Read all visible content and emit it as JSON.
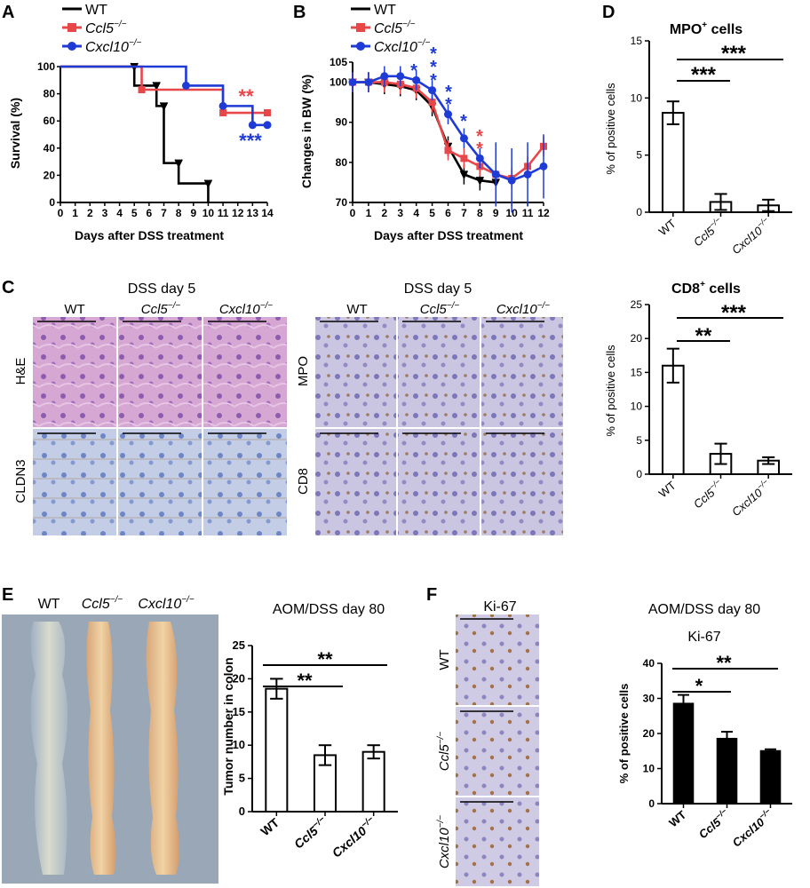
{
  "panel_labels": {
    "A": "A",
    "B": "B",
    "C": "C",
    "D": "D",
    "E": "E",
    "F": "F"
  },
  "legend": {
    "wt": "WT",
    "ccl5": "Ccl5",
    "cxcl10": "Cxcl10",
    "ko_sup": "−/−"
  },
  "colors": {
    "wt": "#000000",
    "ccl5": "#e8474a",
    "cxcl10": "#1f3bd6",
    "panel_bg_he": "#c98fc7",
    "panel_bg_ihc": "#b7b3d6",
    "panel_bg_cldn": "#a9b8d8"
  },
  "panelC": {
    "dss_day5_left": "DSS day 5",
    "dss_day5_right": "DSS day 5",
    "row_he": "H&E",
    "row_cldn3": "CLDN3",
    "row_mpo": "MPO",
    "row_cd8": "CD8",
    "col_wt": "WT"
  },
  "panelE": {
    "col_wt": "WT",
    "subtitle": "AOM/DSS day 80"
  },
  "panelF": {
    "ki67_header": "Ki-67",
    "row_wt": "WT",
    "subtitle": "AOM/DSS day 80"
  },
  "stars": {
    "A_ccl5": "**",
    "A_cxcl10": "***",
    "B_blue": "*",
    "B_red": "*",
    "D1_a": "***",
    "D1_b": "***",
    "D2_a": "**",
    "D2_b": "***",
    "E_a": "**",
    "E_b": "**",
    "F_a": "*",
    "F_b": "**"
  },
  "chart_data": [
    {
      "id": "A",
      "type": "line",
      "ylabel": "Survival (%)",
      "xlabel": "Days after DSS treatment",
      "xlim": [
        0,
        14
      ],
      "ylim": [
        0,
        100
      ],
      "xticks": [
        0,
        1,
        2,
        3,
        4,
        5,
        6,
        7,
        8,
        9,
        10,
        11,
        12,
        13,
        14
      ],
      "yticks": [
        0,
        20,
        40,
        60,
        80,
        100
      ],
      "series": [
        {
          "name": "WT",
          "step": [
            [
              0,
              100
            ],
            [
              5,
              100
            ],
            [
              5,
              86
            ],
            [
              6.5,
              86
            ],
            [
              6.5,
              71
            ],
            [
              7,
              71
            ],
            [
              7,
              29
            ],
            [
              8,
              29
            ],
            [
              8,
              14
            ],
            [
              10,
              14
            ],
            [
              10,
              0
            ]
          ]
        },
        {
          "name": "Ccl5",
          "step": [
            [
              0,
              100
            ],
            [
              5.5,
              100
            ],
            [
              5.5,
              83
            ],
            [
              11,
              83
            ],
            [
              11,
              66
            ],
            [
              14,
              66
            ]
          ]
        },
        {
          "name": "Cxcl10",
          "step": [
            [
              0,
              100
            ],
            [
              8.5,
              100
            ],
            [
              8.5,
              86
            ],
            [
              11,
              86
            ],
            [
              11,
              71
            ],
            [
              13,
              71
            ],
            [
              13,
              57
            ],
            [
              14,
              57
            ]
          ]
        }
      ]
    },
    {
      "id": "B",
      "type": "line",
      "ylabel": "Changes in BW (%)",
      "xlabel": "Days after DSS treatment",
      "xlim": [
        0,
        12
      ],
      "ylim": [
        70,
        105
      ],
      "xticks": [
        0,
        1,
        2,
        3,
        4,
        5,
        6,
        7,
        8,
        9,
        10,
        11,
        12
      ],
      "yticks": [
        70,
        80,
        90,
        100,
        105
      ],
      "series": [
        {
          "name": "WT",
          "x": [
            0,
            1,
            2,
            3,
            4,
            5,
            6,
            7,
            8,
            9
          ],
          "y": [
            100,
            100,
            99.5,
            99,
            98,
            94,
            84,
            77,
            75.5,
            75
          ]
        },
        {
          "name": "Ccl5",
          "x": [
            0,
            1,
            2,
            3,
            4,
            5,
            6,
            7,
            8,
            9,
            10,
            11,
            12
          ],
          "y": [
            100,
            100,
            100,
            99.5,
            98.5,
            95,
            83,
            81,
            79,
            77,
            76,
            79,
            84
          ]
        },
        {
          "name": "Cxcl10",
          "x": [
            0,
            1,
            2,
            3,
            4,
            5,
            6,
            7,
            8,
            9,
            10,
            11,
            12
          ],
          "y": [
            100,
            100,
            101.5,
            101.5,
            100.5,
            98,
            92,
            86,
            81,
            77,
            75.5,
            77,
            79
          ]
        }
      ]
    },
    {
      "id": "D1",
      "type": "bar",
      "title": "MPO",
      "title_sup": "+",
      "title_suffix": " cells",
      "ylabel": "% of positive cells",
      "ylim": [
        0,
        15
      ],
      "yticks": [
        0,
        5,
        10,
        15
      ],
      "categories": [
        "WT",
        "Ccl5",
        "Cxcl10"
      ],
      "values": [
        8.7,
        0.9,
        0.6
      ],
      "errors": [
        1.0,
        0.7,
        0.5
      ]
    },
    {
      "id": "D2",
      "type": "bar",
      "title": "CD8",
      "title_sup": "+",
      "title_suffix": " cells",
      "ylabel": "% of positive cells",
      "ylim": [
        0,
        25
      ],
      "yticks": [
        0,
        5,
        10,
        15,
        20,
        25
      ],
      "categories": [
        "WT",
        "Ccl5",
        "Cxcl10"
      ],
      "values": [
        16,
        3,
        2
      ],
      "errors": [
        2.5,
        1.5,
        0.5
      ]
    },
    {
      "id": "E",
      "type": "bar",
      "ylabel": "Tumor number in colon",
      "ylim": [
        0,
        25
      ],
      "yticks": [
        0,
        5,
        10,
        15,
        20,
        25
      ],
      "categories": [
        "WT",
        "Ccl5",
        "Cxcl10"
      ],
      "values": [
        18.5,
        8.5,
        9
      ],
      "errors": [
        1.5,
        1.5,
        1
      ]
    },
    {
      "id": "F",
      "type": "bar",
      "title": "Ki-67",
      "ylabel": "% of positive cells",
      "ylim": [
        0,
        40
      ],
      "yticks": [
        0,
        10,
        20,
        30,
        40
      ],
      "categories": [
        "WT",
        "Ccl5",
        "Cxcl10"
      ],
      "values": [
        28.5,
        18.5,
        15
      ],
      "errors": [
        2.5,
        2,
        0.5
      ]
    }
  ]
}
